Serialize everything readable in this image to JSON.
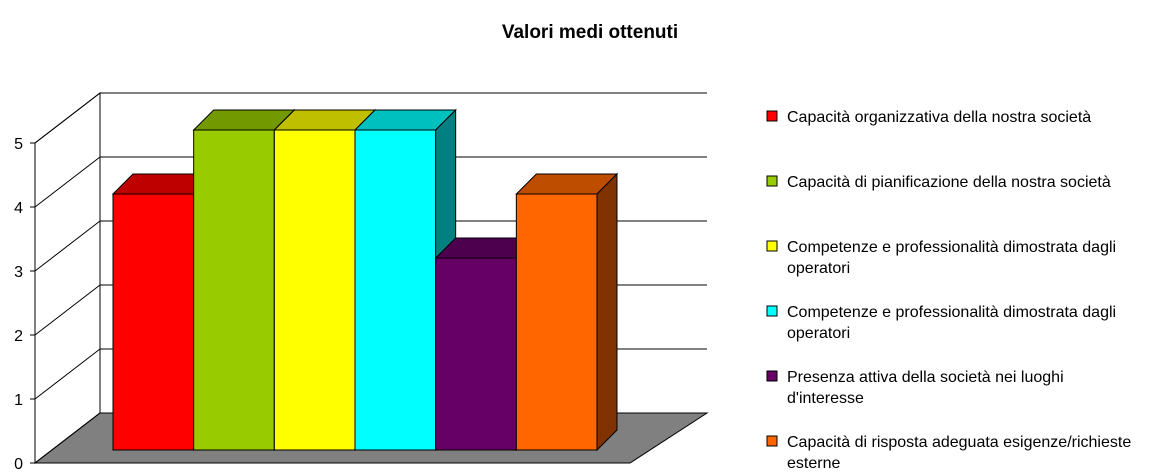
{
  "chart_data": {
    "type": "bar3d",
    "title": "Valori medi ottenuti",
    "categories": [
      null
    ],
    "series": [
      {
        "name": "Capacità organizzativa della nostra società",
        "color": "#ff0000",
        "values": [
          4
        ]
      },
      {
        "name": "Capacità di pianificazione della nostra società",
        "color": "#99cc00",
        "values": [
          5
        ]
      },
      {
        "name": "Competenze e professionalità dimostrata dagli operatori",
        "color": "#ffff00",
        "values": [
          5
        ]
      },
      {
        "name": "Competenze e professionalità dimostrata dagli operatori",
        "color": "#00ffff",
        "values": [
          5
        ]
      },
      {
        "name": "Presenza attiva della società nei luoghi d'interesse",
        "color": "#660066",
        "values": [
          3
        ]
      },
      {
        "name": "Capacità di risposta adeguata esigenze/richieste esterne",
        "color": "#ff6600",
        "values": [
          4
        ]
      }
    ],
    "ylim": [
      0,
      5
    ],
    "yticks": [
      0,
      1,
      2,
      3,
      4,
      5
    ],
    "grid": true,
    "legend": "right"
  }
}
